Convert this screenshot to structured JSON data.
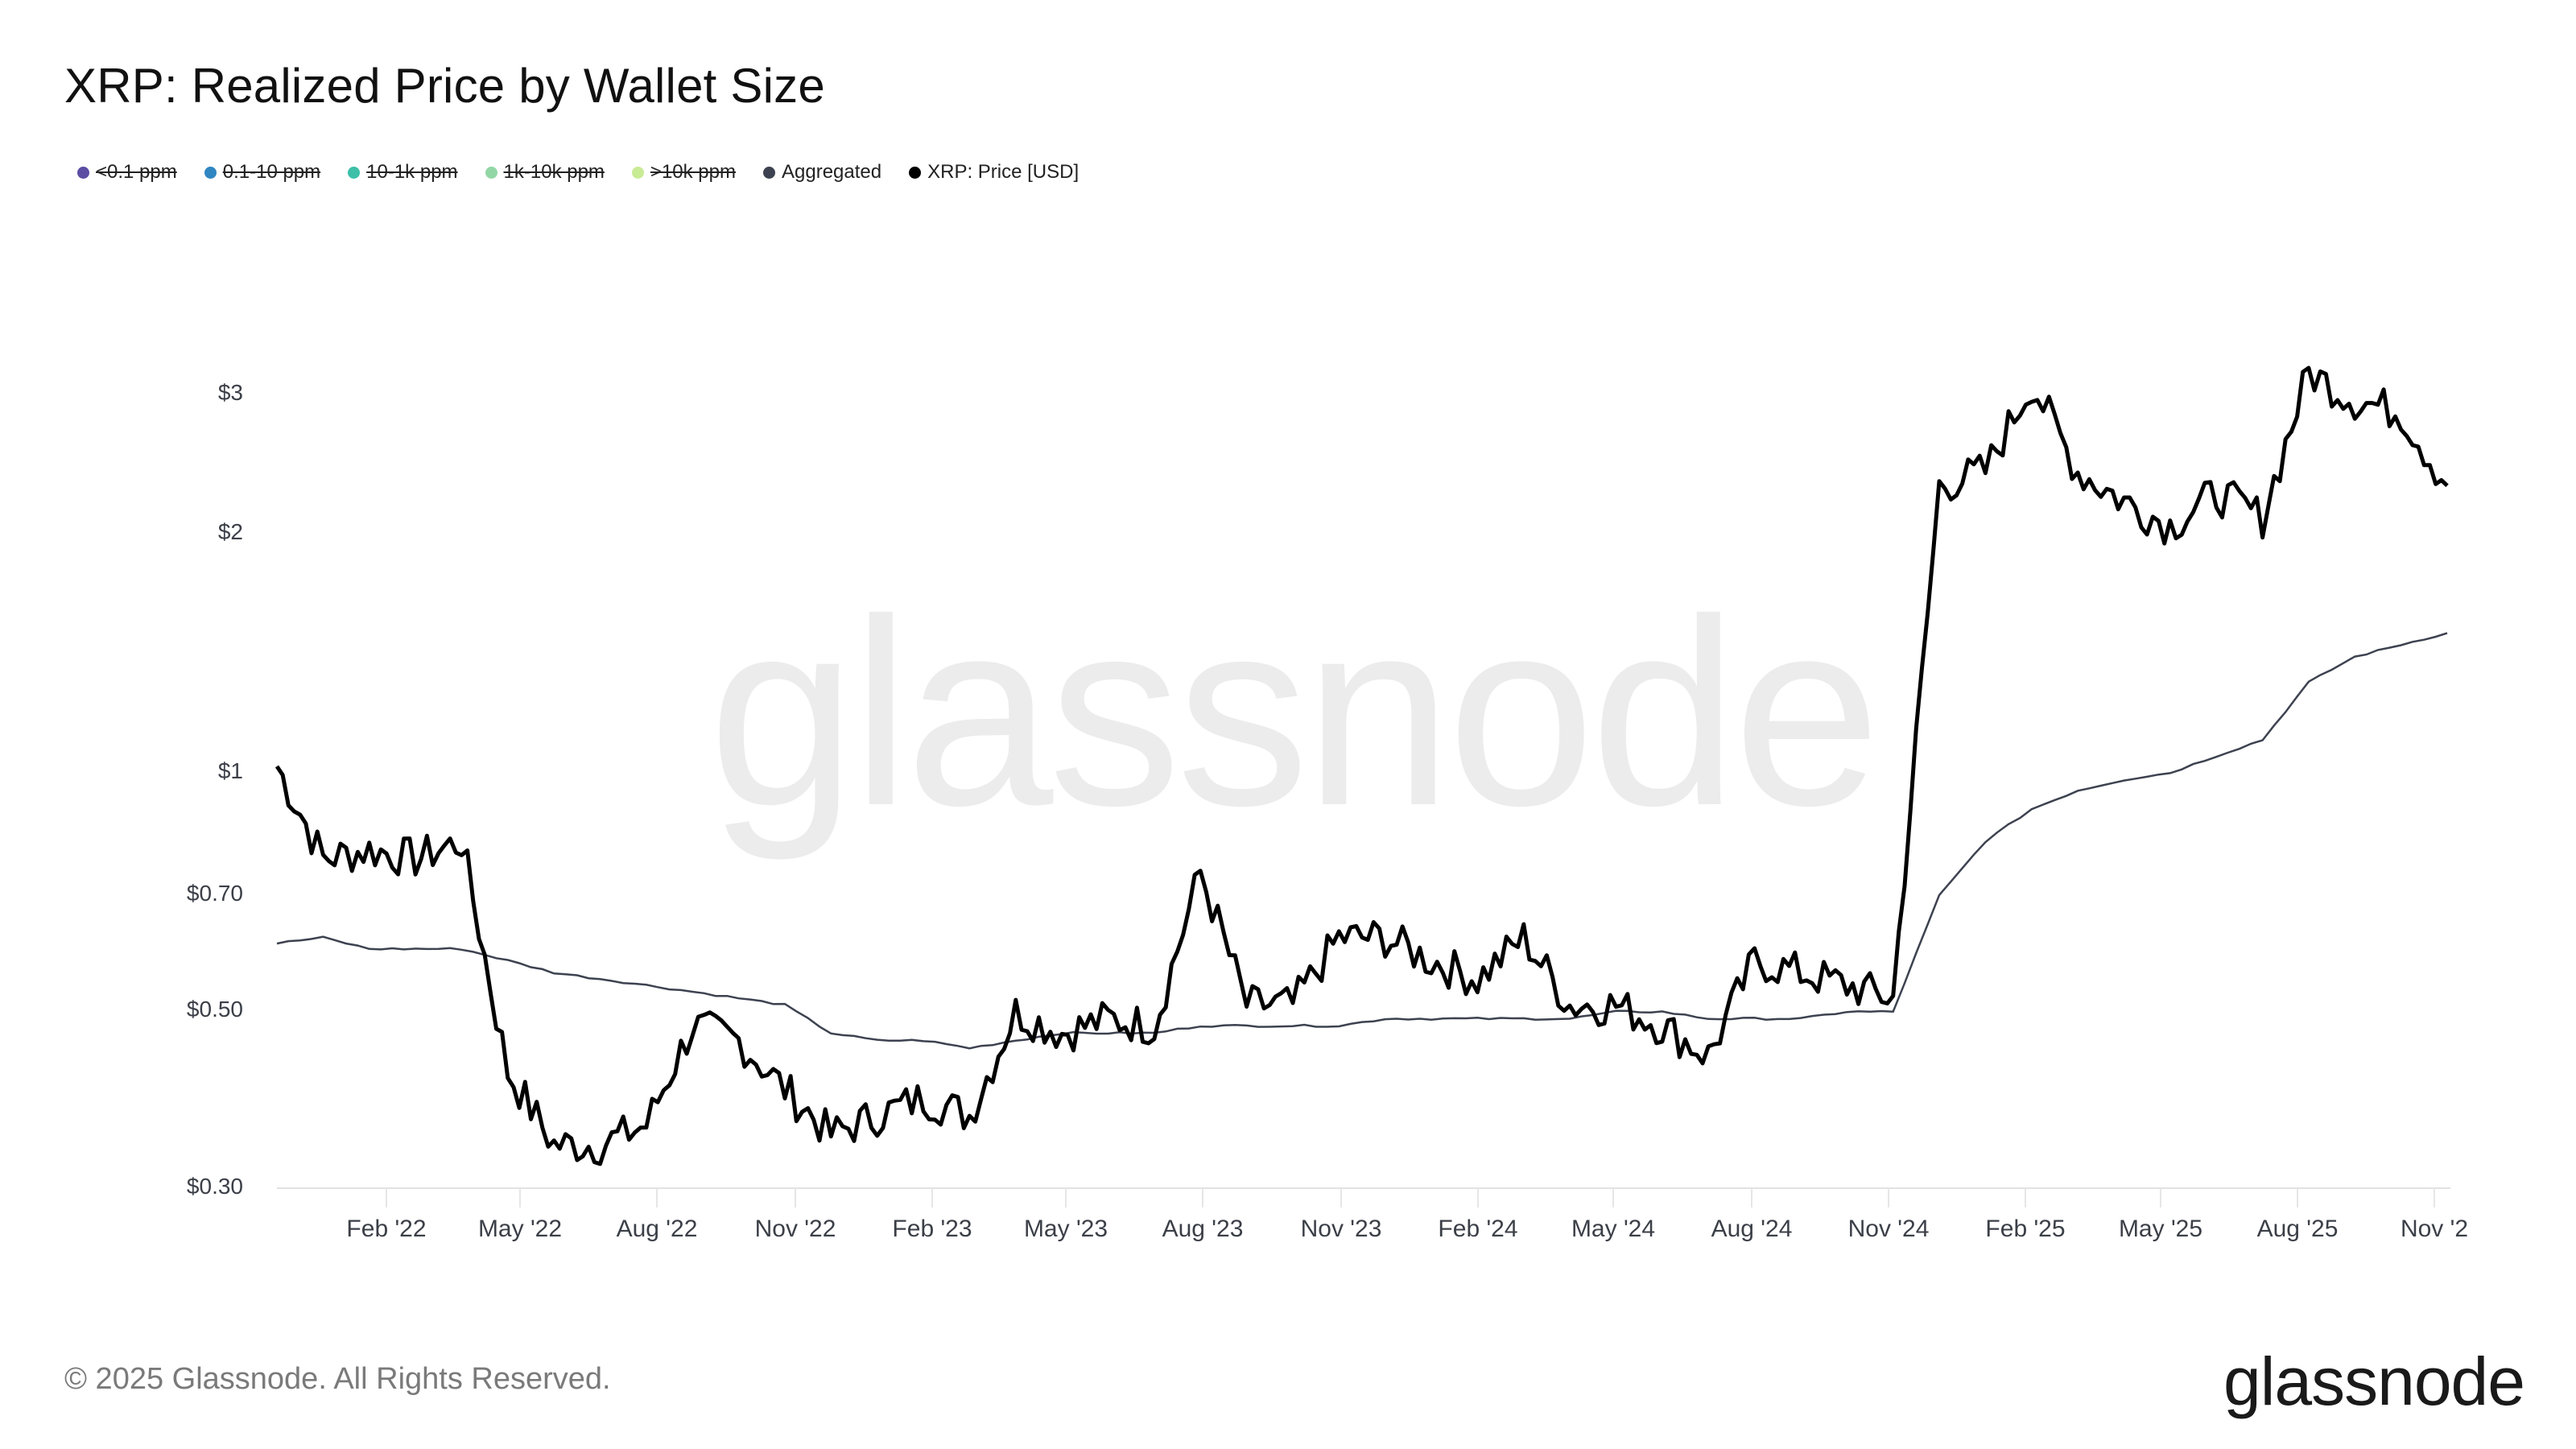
{
  "header": {
    "title": "XRP: Realized Price by Wallet Size"
  },
  "legend": [
    {
      "label": "<0.1 ppm",
      "color": "#5b4ea3",
      "enabled": false
    },
    {
      "label": "0.1-10 ppm",
      "color": "#2f86c1",
      "enabled": false
    },
    {
      "label": "10-1k ppm",
      "color": "#3dbfa8",
      "enabled": false
    },
    {
      "label": "1k-10k ppm",
      "color": "#93d6a6",
      "enabled": false
    },
    {
      "label": ">10k ppm",
      "color": "#c8eb95",
      "enabled": false
    },
    {
      "label": "Aggregated",
      "color": "#3d4250",
      "enabled": true
    },
    {
      "label": "XRP: Price [USD]",
      "color": "#000000",
      "enabled": true
    }
  ],
  "footer": {
    "copyright": "© 2025 Glassnode. All Rights Reserved.",
    "logo": "glassnode",
    "watermark": "glassnode"
  },
  "chart_data": {
    "type": "line",
    "title": "XRP: Realized Price by Wallet Size",
    "xlabel": "",
    "ylabel": "",
    "yscale": "log",
    "ylim": [
      0.3,
      3.6
    ],
    "y_ticks": [
      "$3",
      "$2",
      "$1",
      "$0.70",
      "$0.50",
      "$0.30"
    ],
    "y_tick_values": [
      3,
      2,
      1,
      0.7,
      0.5,
      0.3
    ],
    "x_ticks": [
      "Feb '22",
      "May '22",
      "Aug '22",
      "Nov '22",
      "Feb '23",
      "May '23",
      "Aug '23",
      "Nov '23",
      "Feb '24",
      "May '24",
      "Aug '24",
      "Nov '24",
      "Feb '25",
      "May '25",
      "Aug '25",
      "Nov '2"
    ],
    "legend_position": "top-left",
    "grid": false,
    "x": [
      "2021-12",
      "2022-01",
      "2022-02",
      "2022-03",
      "2022-04",
      "2022-05",
      "2022-06",
      "2022-07",
      "2022-08",
      "2022-09",
      "2022-10",
      "2022-11",
      "2022-12",
      "2023-01",
      "2023-02",
      "2023-03",
      "2023-04",
      "2023-05",
      "2023-06",
      "2023-07",
      "2023-08",
      "2023-09",
      "2023-10",
      "2023-11",
      "2023-12",
      "2024-01",
      "2024-02",
      "2024-03",
      "2024-04",
      "2024-05",
      "2024-06",
      "2024-07",
      "2024-08",
      "2024-09",
      "2024-10",
      "2024-11",
      "2024-12",
      "2025-01",
      "2025-02",
      "2025-03",
      "2025-04",
      "2025-05",
      "2025-06",
      "2025-07",
      "2025-08",
      "2025-09",
      "2025-10",
      "2025-11"
    ],
    "series": [
      {
        "name": "XRP: Price [USD]",
        "color": "#000000",
        "values": [
          1.02,
          0.78,
          0.8,
          0.78,
          0.82,
          0.42,
          0.34,
          0.34,
          0.36,
          0.48,
          0.46,
          0.4,
          0.35,
          0.37,
          0.39,
          0.37,
          0.5,
          0.47,
          0.49,
          0.48,
          0.75,
          0.51,
          0.51,
          0.62,
          0.62,
          0.58,
          0.55,
          0.62,
          0.51,
          0.51,
          0.48,
          0.44,
          0.58,
          0.56,
          0.54,
          0.52,
          2.3,
          2.4,
          3.1,
          2.4,
          2.2,
          2.05,
          2.25,
          2.1,
          3.2,
          2.95,
          2.85,
          2.3
        ]
      },
      {
        "name": "Aggregated",
        "color": "#3d4250",
        "values": [
          0.61,
          0.62,
          0.6,
          0.6,
          0.6,
          0.58,
          0.56,
          0.55,
          0.54,
          0.53,
          0.52,
          0.51,
          0.47,
          0.46,
          0.46,
          0.45,
          0.46,
          0.47,
          0.47,
          0.47,
          0.48,
          0.48,
          0.48,
          0.48,
          0.49,
          0.49,
          0.49,
          0.49,
          0.49,
          0.5,
          0.5,
          0.49,
          0.49,
          0.49,
          0.5,
          0.5,
          0.7,
          0.82,
          0.9,
          0.95,
          0.98,
          1.0,
          1.05,
          1.1,
          1.3,
          1.4,
          1.45,
          1.5
        ]
      }
    ]
  }
}
